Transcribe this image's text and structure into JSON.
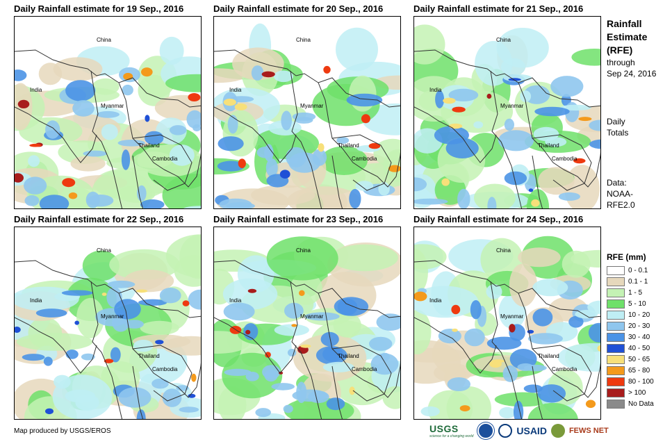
{
  "panels": [
    {
      "title": "Daily Rainfall estimate for 19 Sep., 2016"
    },
    {
      "title": "Daily Rainfall estimate for 20 Sep., 2016"
    },
    {
      "title": "Daily Rainfall estimate for 21 Sep., 2016"
    },
    {
      "title": "Daily Rainfall estimate for 22 Sep., 2016"
    },
    {
      "title": "Daily Rainfall estimate for 23 Sep., 2016"
    },
    {
      "title": "Daily Rainfall estimate for 24 Sep., 2016"
    }
  ],
  "map_labels": {
    "china": "China",
    "india": "India",
    "myanmar": "Myanmar",
    "thailand": "Thailand",
    "cambodia": "Cambodia"
  },
  "side": {
    "title1": "Rainfall",
    "title2": "Estimate",
    "title3": "(RFE)",
    "through1": "through",
    "through2": "Sep 24, 2016",
    "daily1": "Daily",
    "daily2": "Totals",
    "data1": "Data:",
    "data2": "NOAA-",
    "data3": "RFE2.0"
  },
  "legend": {
    "title": "RFE (mm)",
    "items": [
      {
        "label": "0 - 0.1",
        "color": "#ffffff"
      },
      {
        "label": "0.1 - 1",
        "color": "#e6d8bc"
      },
      {
        "label": "1 - 5",
        "color": "#c4f2b4"
      },
      {
        "label": "5 - 10",
        "color": "#6fe06a"
      },
      {
        "label": "10 - 20",
        "color": "#bfeef4"
      },
      {
        "label": "20 - 30",
        "color": "#8fc6ee"
      },
      {
        "label": "30 - 40",
        "color": "#4b93e6"
      },
      {
        "label": "40 - 50",
        "color": "#1f50d6"
      },
      {
        "label": "50 - 65",
        "color": "#f7e07a"
      },
      {
        "label": "65 - 80",
        "color": "#f49a1c"
      },
      {
        "label": "80 - 100",
        "color": "#ee3a10"
      },
      {
        "label": "> 100",
        "color": "#a81c1c"
      },
      {
        "label": "No Data",
        "color": "#8a8a8a"
      }
    ]
  },
  "footer": {
    "credit": "Map produced by USGS/EROS"
  },
  "logos": {
    "usgs": "USGS",
    "usgs_tag": "science for a changing world",
    "usaid": "USAID",
    "fews": "FEWS NET"
  }
}
